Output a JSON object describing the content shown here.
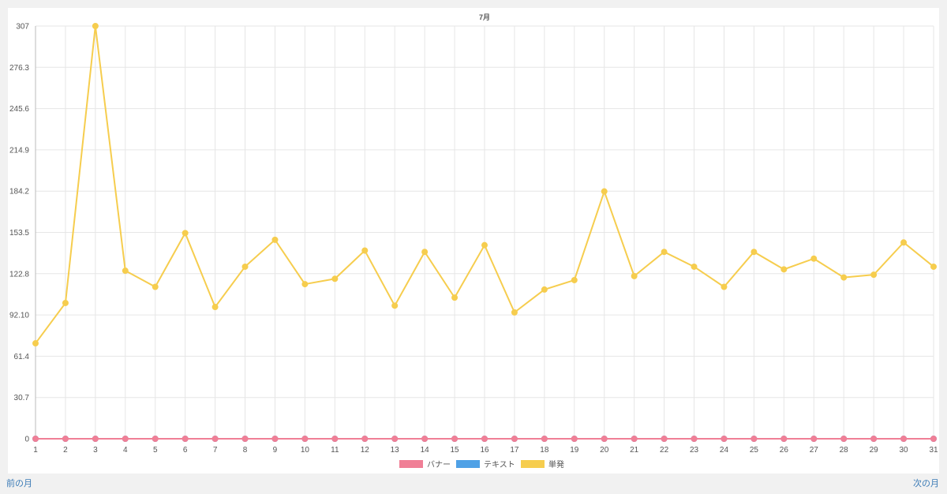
{
  "nav": {
    "prev_label": "前の月",
    "next_label": "次の月"
  },
  "chart_data": {
    "type": "line",
    "title": "7月",
    "x": [
      "1",
      "2",
      "3",
      "4",
      "5",
      "6",
      "7",
      "8",
      "9",
      "10",
      "11",
      "12",
      "13",
      "14",
      "15",
      "16",
      "17",
      "18",
      "19",
      "20",
      "21",
      "22",
      "23",
      "24",
      "25",
      "26",
      "27",
      "28",
      "29",
      "30",
      "31"
    ],
    "yticks": [
      "0",
      "30.7",
      "61.4",
      "92.10",
      "122.8",
      "153.5",
      "184.2",
      "214.9",
      "245.6",
      "276.3",
      "307"
    ],
    "ylim": [
      0,
      307
    ],
    "grid": true,
    "legend_position": "bottom",
    "series": [
      {
        "name": "バナー",
        "color": "#f07f96",
        "values": [
          0,
          0,
          0,
          0,
          0,
          0,
          0,
          0,
          0,
          0,
          0,
          0,
          0,
          0,
          0,
          0,
          0,
          0,
          0,
          0,
          0,
          0,
          0,
          0,
          0,
          0,
          0,
          0,
          0,
          0,
          0
        ]
      },
      {
        "name": "テキスト",
        "color": "#4fa1e6",
        "values": [
          0,
          0,
          0,
          0,
          0,
          0,
          0,
          0,
          0,
          0,
          0,
          0,
          0,
          0,
          0,
          0,
          0,
          0,
          0,
          0,
          0,
          0,
          0,
          0,
          0,
          0,
          0,
          0,
          0,
          0,
          0
        ]
      },
      {
        "name": "単発",
        "color": "#f6cd4e",
        "values": [
          71,
          101,
          307,
          125,
          113,
          153,
          98,
          128,
          148,
          115,
          119,
          140,
          99,
          139,
          105,
          144,
          94,
          111,
          118,
          184,
          121,
          139,
          128,
          113,
          139,
          126,
          134,
          120,
          122,
          146,
          128
        ]
      }
    ]
  }
}
